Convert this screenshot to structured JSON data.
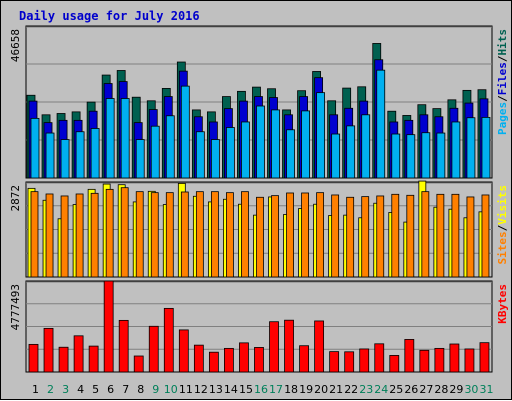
{
  "colors": {
    "background": "#c0c0c0",
    "title": "#0000cc",
    "hits": "#006050",
    "files": "#0000d0",
    "pages": "#00b0f0",
    "visits": "#ffff00",
    "sites": "#ff8000",
    "kbytes": "#ff0000",
    "weekday": "#000000",
    "weekend": "#00805a"
  },
  "chart_data": [
    {
      "type": "bar",
      "title": "Daily usage for July 2016",
      "ymax_label": "46658",
      "ylim": [
        0,
        46658
      ],
      "legend": [
        "Pages",
        "Files",
        "Hits"
      ],
      "categories": [
        "1",
        "2",
        "3",
        "4",
        "5",
        "6",
        "7",
        "8",
        "9",
        "10",
        "11",
        "12",
        "13",
        "14",
        "15",
        "16",
        "17",
        "18",
        "19",
        "20",
        "21",
        "22",
        "23",
        "24",
        "25",
        "26",
        "27",
        "28",
        "29",
        "30",
        "31"
      ],
      "weekend_days": [
        "2",
        "3",
        "9",
        "10",
        "16",
        "17",
        "23",
        "24",
        "30",
        "31"
      ],
      "series": [
        {
          "name": "Hits",
          "values": [
            25400,
            19400,
            19800,
            20300,
            23300,
            31600,
            33000,
            24800,
            23700,
            27500,
            35600,
            20900,
            20300,
            25000,
            26600,
            27900,
            27400,
            20900,
            26800,
            32700,
            23700,
            27600,
            28000,
            41300,
            20500,
            19200,
            22500,
            21300,
            24000,
            26900,
            27100
          ]
        },
        {
          "name": "Files",
          "values": [
            23600,
            17000,
            17700,
            17700,
            20500,
            29000,
            29600,
            17000,
            21000,
            25000,
            32800,
            18800,
            17200,
            21300,
            23600,
            25000,
            24700,
            19400,
            25000,
            30800,
            19400,
            21400,
            23600,
            36300,
            17200,
            17700,
            19400,
            18800,
            21400,
            23000,
            24300
          ]
        },
        {
          "name": "Pages",
          "values": [
            18300,
            13800,
            11800,
            14200,
            15200,
            24400,
            24400,
            11800,
            15900,
            19100,
            28200,
            14200,
            11800,
            15500,
            17200,
            22100,
            20900,
            14800,
            20600,
            26200,
            13500,
            16000,
            19400,
            33100,
            13500,
            13300,
            13900,
            13800,
            17200,
            18500,
            18600
          ]
        }
      ]
    },
    {
      "type": "bar",
      "ymax_label": "2872",
      "ylim": [
        0,
        2872
      ],
      "legend": [
        "Sites",
        "Visits"
      ],
      "categories": [
        "1",
        "2",
        "3",
        "4",
        "5",
        "6",
        "7",
        "8",
        "9",
        "10",
        "11",
        "12",
        "13",
        "14",
        "15",
        "16",
        "17",
        "18",
        "19",
        "20",
        "21",
        "22",
        "23",
        "24",
        "25",
        "26",
        "27",
        "28",
        "29",
        "30",
        "31"
      ],
      "series": [
        {
          "name": "Visits",
          "values": [
            2680,
            2320,
            1760,
            2190,
            2650,
            2810,
            2790,
            2270,
            2590,
            2190,
            2830,
            2440,
            2270,
            2350,
            2200,
            1870,
            2420,
            1890,
            2070,
            2200,
            1860,
            1870,
            1790,
            2230,
            1950,
            1660,
            2900,
            2110,
            2050,
            1790,
            1970
          ]
        },
        {
          "name": "Sites",
          "values": [
            2580,
            2510,
            2450,
            2510,
            2530,
            2650,
            2700,
            2580,
            2550,
            2550,
            2570,
            2580,
            2580,
            2550,
            2580,
            2410,
            2460,
            2540,
            2540,
            2550,
            2480,
            2410,
            2430,
            2450,
            2500,
            2470,
            2580,
            2500,
            2500,
            2420,
            2480
          ]
        }
      ]
    },
    {
      "type": "bar",
      "ymax_label": "4777493",
      "ylim": [
        0,
        4777493
      ],
      "legend": [
        "KBytes"
      ],
      "categories": [
        "1",
        "2",
        "3",
        "4",
        "5",
        "6",
        "7",
        "8",
        "9",
        "10",
        "11",
        "12",
        "13",
        "14",
        "15",
        "16",
        "17",
        "18",
        "19",
        "20",
        "21",
        "22",
        "23",
        "24",
        "25",
        "26",
        "27",
        "28",
        "29",
        "30",
        "31"
      ],
      "series": [
        {
          "name": "KBytes",
          "values": [
            1450000,
            2290000,
            1300000,
            1900000,
            1360000,
            4777000,
            2710000,
            840000,
            2400000,
            3340000,
            2210000,
            1410000,
            1040000,
            1240000,
            1530000,
            1290000,
            2640000,
            2720000,
            1380000,
            2680000,
            1070000,
            1060000,
            1210000,
            1480000,
            870000,
            1710000,
            1140000,
            1240000,
            1470000,
            1210000,
            1540000
          ]
        }
      ]
    }
  ]
}
